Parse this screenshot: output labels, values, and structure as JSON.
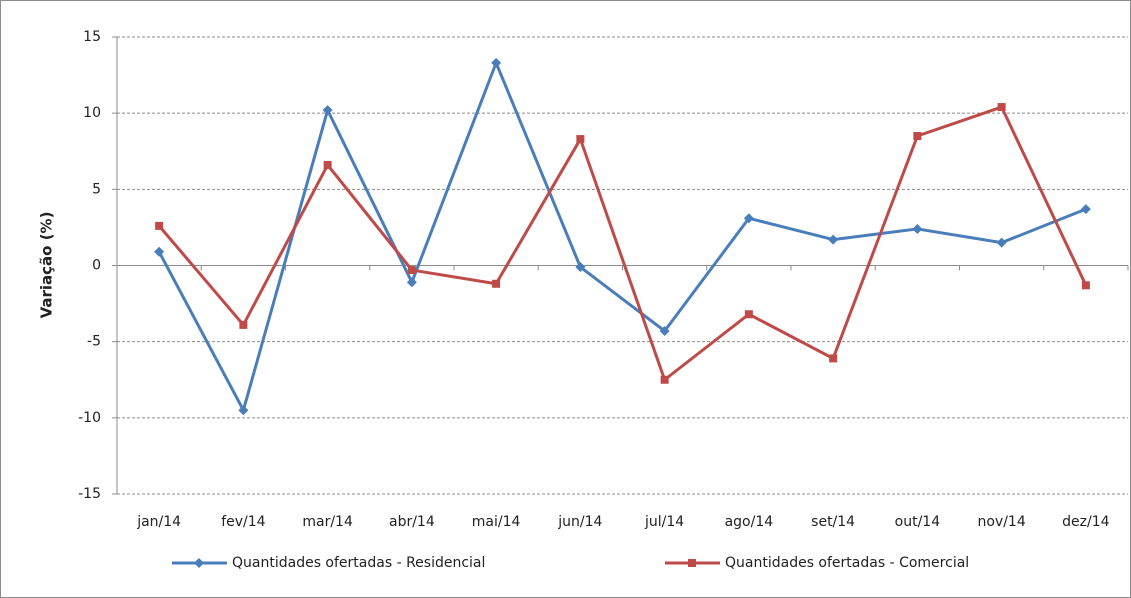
{
  "chart_data": {
    "type": "line",
    "y_label": "Variação (%)",
    "categories": [
      "jan/14",
      "fev/14",
      "mar/14",
      "abr/14",
      "mai/14",
      "jun/14",
      "jul/14",
      "ago/14",
      "set/14",
      "out/14",
      "nov/14",
      "dez/14"
    ],
    "series": [
      {
        "name": "Quantidades ofertadas - Residencial",
        "color": "#4a7ebb",
        "marker": "diamond",
        "values": [
          0.9,
          -9.5,
          10.2,
          -1.1,
          13.3,
          -0.1,
          -4.3,
          3.1,
          1.7,
          2.4,
          1.5,
          3.7
        ]
      },
      {
        "name": "Quantidades ofertadas - Comercial",
        "color": "#be4b48",
        "marker": "square",
        "values": [
          2.6,
          -3.9,
          6.6,
          -0.3,
          -1.2,
          8.3,
          -7.5,
          -3.2,
          -6.1,
          8.5,
          10.4,
          -1.3
        ]
      }
    ],
    "ylim": [
      -15,
      15
    ],
    "yticks": [
      -15,
      -10,
      -5,
      0,
      5,
      10,
      15
    ],
    "grid": true,
    "legend": "bottom"
  }
}
